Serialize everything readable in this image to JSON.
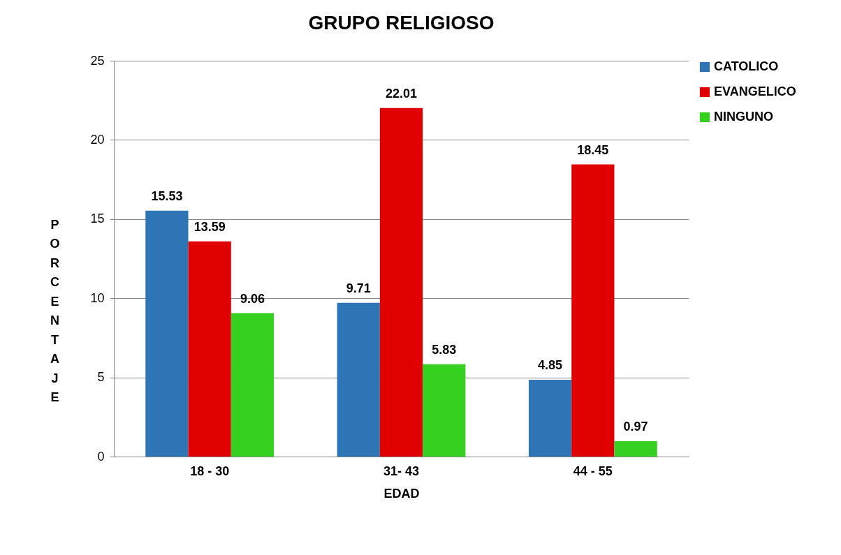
{
  "chart_data": {
    "type": "bar",
    "title": "GRUPO RELIGIOSO",
    "xlabel": "EDAD",
    "ylabel": "PORCENTAJE",
    "categories": [
      "18 - 30",
      "31- 43",
      "44 - 55"
    ],
    "series": [
      {
        "name": "CATOLICO",
        "color": "#2e75b6",
        "values": [
          15.53,
          9.71,
          4.85
        ]
      },
      {
        "name": "EVANGELICO",
        "color": "#e00000",
        "values": [
          13.59,
          22.01,
          18.45
        ]
      },
      {
        "name": "NINGUNO",
        "color": "#36d020",
        "values": [
          9.06,
          5.83,
          0.97
        ]
      }
    ],
    "ylim": [
      0,
      25
    ],
    "yticks": [
      0,
      5,
      10,
      15,
      20,
      25
    ],
    "grid": "y",
    "legend": "right",
    "data_labels": true
  }
}
